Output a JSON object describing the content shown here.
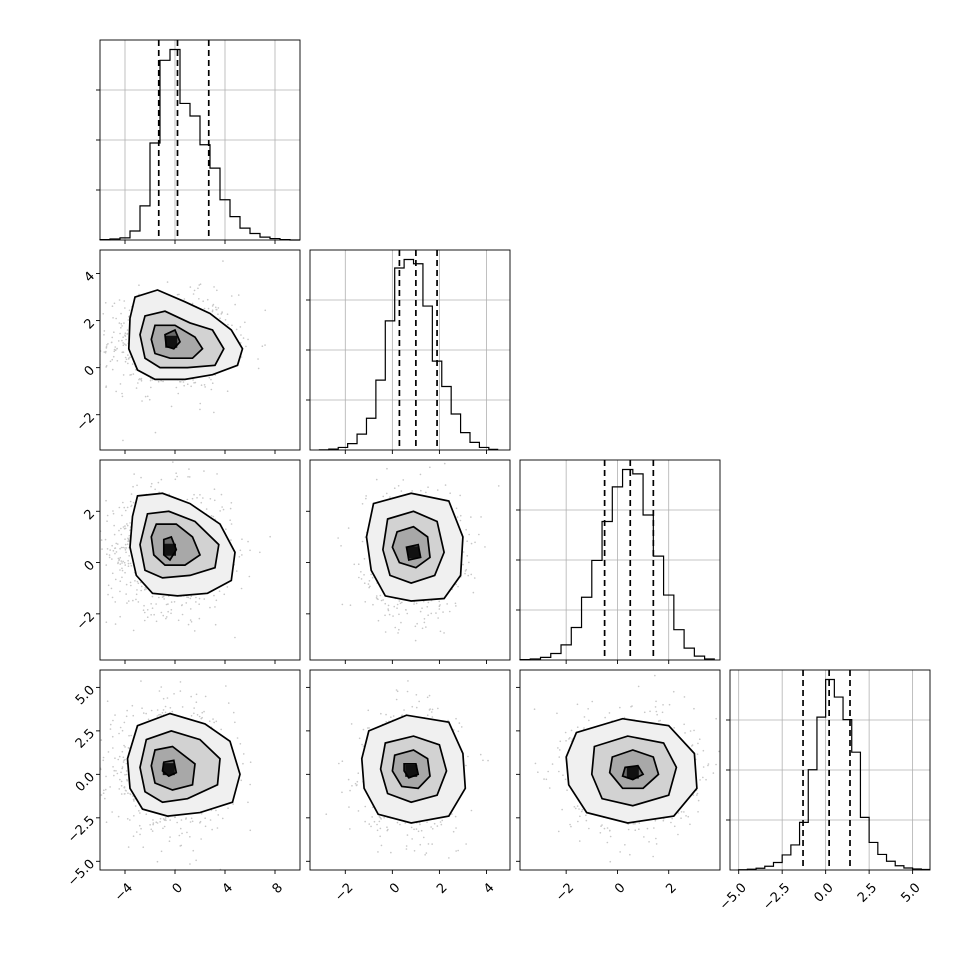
{
  "chart_data": {
    "type": "corner",
    "parameters": [
      {
        "index": 0,
        "range": [
          -6,
          10
        ],
        "quantiles": [
          -1.3,
          0.2,
          2.7
        ],
        "ticks": [
          -4,
          0,
          4,
          8
        ],
        "tick_labels": [
          "−4",
          "0",
          "4",
          "8"
        ],
        "hist": {
          "edges": [
            -6,
            -5.2,
            -4.4,
            -3.6,
            -2.8,
            -2,
            -1.2,
            -0.4,
            0.4,
            1.2,
            2,
            2.8,
            3.6,
            4.4,
            5.2,
            6,
            6.8,
            7.6,
            8.4,
            9.2,
            10
          ],
          "counts": [
            1,
            3,
            6,
            25,
            95,
            270,
            500,
            530,
            380,
            345,
            265,
            200,
            112,
            65,
            33,
            18,
            8,
            4,
            1,
            0
          ]
        }
      },
      {
        "index": 1,
        "range": [
          -3.5,
          5
        ],
        "quantiles": [
          0.3,
          1.0,
          1.9
        ],
        "ticks": [
          -2,
          0,
          2,
          4
        ],
        "tick_labels": [
          "−2",
          "0",
          "2",
          "4"
        ],
        "y_ticks": [
          -2,
          0,
          2,
          4
        ],
        "y_tick_labels": [
          "−2",
          "0",
          "2",
          "4"
        ],
        "hist": {
          "edges": [
            -3.1,
            -2.7,
            -2.3,
            -1.9,
            -1.5,
            -1.1,
            -0.7,
            -0.3,
            0.1,
            0.5,
            0.9,
            1.3,
            1.7,
            2.1,
            2.5,
            2.9,
            3.3,
            3.7,
            4.1,
            4.5
          ],
          "counts": [
            1,
            4,
            12,
            30,
            75,
            150,
            330,
            610,
            860,
            900,
            880,
            680,
            420,
            300,
            170,
            82,
            36,
            12,
            3
          ]
        }
      },
      {
        "index": 2,
        "range": [
          -3.8,
          4
        ],
        "quantiles": [
          -0.5,
          0.5,
          1.4
        ],
        "ticks": [
          -2,
          0,
          2
        ],
        "tick_labels": [
          "−2",
          "0",
          "2"
        ],
        "y_ticks": [
          -2,
          0,
          2
        ],
        "y_tick_labels": [
          "−2",
          "0",
          "2"
        ],
        "hist": {
          "edges": [
            -3.8,
            -3.4,
            -3,
            -2.6,
            -2.2,
            -1.8,
            -1.4,
            -1,
            -0.6,
            -0.2,
            0.2,
            0.6,
            1,
            1.4,
            1.8,
            2.2,
            2.6,
            3,
            3.4,
            3.8
          ],
          "counts": [
            2,
            5,
            12,
            30,
            70,
            150,
            290,
            460,
            640,
            800,
            880,
            860,
            670,
            480,
            300,
            140,
            55,
            18,
            5
          ]
        }
      },
      {
        "index": 3,
        "range": [
          -5.5,
          6
        ],
        "quantiles": [
          -1.3,
          0.2,
          1.4
        ],
        "ticks": [
          -5,
          -2.5,
          0,
          2.5,
          5
        ],
        "tick_labels": [
          "−5.0",
          "−2.5",
          "0.0",
          "2.5",
          "5.0"
        ],
        "y_ticks": [
          -5,
          -2.5,
          0,
          2.5,
          5
        ],
        "y_tick_labels": [
          "−5.0",
          "−2.5",
          "0.0",
          "2.5",
          "5.0"
        ],
        "hist": {
          "edges": [
            -5,
            -4.5,
            -4,
            -3.5,
            -3,
            -2.5,
            -2,
            -1.5,
            -1,
            -0.5,
            0,
            0.5,
            1,
            1.5,
            2,
            2.5,
            3,
            3.5,
            4,
            4.5,
            5,
            5.5,
            6
          ],
          "counts": [
            1,
            3,
            7,
            15,
            30,
            60,
            100,
            190,
            400,
            610,
            760,
            690,
            600,
            470,
            210,
            110,
            62,
            35,
            17,
            8,
            4,
            2
          ]
        }
      }
    ],
    "pairs": [
      {
        "x": 0,
        "y": 1,
        "peak": [
          -0.3,
          1.1
        ],
        "contours": [
          [
            [
              -3.2,
              3.0
            ],
            [
              -1.4,
              3.3
            ],
            [
              0.8,
              2.8
            ],
            [
              2.8,
              2.3
            ],
            [
              4.5,
              1.6
            ],
            [
              5.4,
              0.8
            ],
            [
              5.0,
              0.1
            ],
            [
              3.0,
              -0.3
            ],
            [
              0.8,
              -0.5
            ],
            [
              -1.6,
              -0.5
            ],
            [
              -3.0,
              -0.1
            ],
            [
              -3.7,
              0.8
            ],
            [
              -3.6,
              2.1
            ]
          ],
          [
            [
              -2.4,
              2.2
            ],
            [
              -0.8,
              2.4
            ],
            [
              1.2,
              1.9
            ],
            [
              3.0,
              1.6
            ],
            [
              3.9,
              0.8
            ],
            [
              3.2,
              0.1
            ],
            [
              1.0,
              0.0
            ],
            [
              -1.2,
              0.0
            ],
            [
              -2.4,
              0.4
            ],
            [
              -2.8,
              1.4
            ]
          ],
          [
            [
              -1.6,
              1.8
            ],
            [
              0.0,
              1.8
            ],
            [
              1.6,
              1.3
            ],
            [
              2.2,
              0.8
            ],
            [
              1.4,
              0.4
            ],
            [
              -0.4,
              0.4
            ],
            [
              -1.6,
              0.6
            ],
            [
              -1.9,
              1.2
            ]
          ],
          [
            [
              -0.8,
              1.4
            ],
            [
              0.0,
              1.6
            ],
            [
              0.4,
              1.1
            ],
            [
              -0.1,
              0.8
            ],
            [
              -0.7,
              0.9
            ]
          ]
        ]
      },
      {
        "x": 0,
        "y": 2,
        "peak": [
          -0.4,
          0.5
        ],
        "contours": [
          [
            [
              -3.0,
              2.6
            ],
            [
              -1.0,
              2.7
            ],
            [
              1.2,
              2.3
            ],
            [
              3.6,
              1.5
            ],
            [
              4.8,
              0.4
            ],
            [
              4.5,
              -0.7
            ],
            [
              2.6,
              -1.2
            ],
            [
              0.2,
              -1.3
            ],
            [
              -1.8,
              -1.2
            ],
            [
              -3.1,
              -0.5
            ],
            [
              -3.6,
              0.6
            ],
            [
              -3.4,
              1.8
            ]
          ],
          [
            [
              -2.2,
              1.9
            ],
            [
              -0.5,
              2.0
            ],
            [
              1.6,
              1.6
            ],
            [
              3.5,
              0.7
            ],
            [
              3.2,
              -0.2
            ],
            [
              1.2,
              -0.5
            ],
            [
              -1.0,
              -0.6
            ],
            [
              -2.4,
              -0.3
            ],
            [
              -2.8,
              0.7
            ]
          ],
          [
            [
              -1.5,
              1.5
            ],
            [
              0.1,
              1.5
            ],
            [
              1.4,
              1.0
            ],
            [
              2.0,
              0.3
            ],
            [
              0.8,
              -0.1
            ],
            [
              -0.8,
              -0.1
            ],
            [
              -1.7,
              0.3
            ],
            [
              -1.9,
              1.0
            ]
          ],
          [
            [
              -0.9,
              0.9
            ],
            [
              -0.3,
              1.0
            ],
            [
              0.1,
              0.5
            ],
            [
              -0.4,
              0.1
            ],
            [
              -0.9,
              0.3
            ]
          ]
        ]
      },
      {
        "x": 1,
        "y": 2,
        "peak": [
          0.9,
          0.4
        ],
        "contours": [
          [
            [
              -0.8,
              2.3
            ],
            [
              0.8,
              2.7
            ],
            [
              2.4,
              2.4
            ],
            [
              3.0,
              1.0
            ],
            [
              2.9,
              -0.5
            ],
            [
              2.2,
              -1.4
            ],
            [
              0.8,
              -1.5
            ],
            [
              -0.3,
              -1.3
            ],
            [
              -0.9,
              -0.3
            ],
            [
              -1.1,
              1.0
            ]
          ],
          [
            [
              -0.2,
              1.7
            ],
            [
              0.9,
              2.0
            ],
            [
              1.9,
              1.6
            ],
            [
              2.2,
              0.4
            ],
            [
              1.8,
              -0.5
            ],
            [
              0.8,
              -0.8
            ],
            [
              -0.1,
              -0.5
            ],
            [
              -0.4,
              0.5
            ]
          ],
          [
            [
              0.2,
              1.2
            ],
            [
              0.9,
              1.4
            ],
            [
              1.5,
              1.0
            ],
            [
              1.6,
              0.2
            ],
            [
              1.0,
              -0.2
            ],
            [
              0.3,
              0.0
            ],
            [
              0.0,
              0.6
            ]
          ],
          [
            [
              0.6,
              0.6
            ],
            [
              1.1,
              0.7
            ],
            [
              1.2,
              0.2
            ],
            [
              0.7,
              0.1
            ]
          ]
        ]
      },
      {
        "x": 0,
        "y": 3,
        "peak": [
          -0.5,
          0.3
        ],
        "contours": [
          [
            [
              -3.0,
              2.8
            ],
            [
              -0.4,
              3.5
            ],
            [
              2.4,
              2.9
            ],
            [
              4.4,
              1.9
            ],
            [
              5.2,
              0.0
            ],
            [
              4.6,
              -1.6
            ],
            [
              2.0,
              -2.2
            ],
            [
              -0.6,
              -2.4
            ],
            [
              -2.6,
              -2.0
            ],
            [
              -3.6,
              -0.8
            ],
            [
              -3.8,
              0.9
            ]
          ],
          [
            [
              -2.3,
              2.0
            ],
            [
              -0.3,
              2.5
            ],
            [
              2.0,
              2.0
            ],
            [
              3.6,
              0.9
            ],
            [
              3.4,
              -0.6
            ],
            [
              1.0,
              -1.4
            ],
            [
              -1.0,
              -1.6
            ],
            [
              -2.4,
              -1.0
            ],
            [
              -2.8,
              0.4
            ]
          ],
          [
            [
              -1.6,
              1.4
            ],
            [
              -0.2,
              1.6
            ],
            [
              1.6,
              0.6
            ],
            [
              1.4,
              -0.6
            ],
            [
              -0.2,
              -0.9
            ],
            [
              -1.6,
              -0.5
            ],
            [
              -1.9,
              0.5
            ]
          ],
          [
            [
              -0.9,
              0.7
            ],
            [
              -0.1,
              0.8
            ],
            [
              0.1,
              0.1
            ],
            [
              -0.5,
              -0.1
            ],
            [
              -1.0,
              0.2
            ]
          ]
        ]
      },
      {
        "x": 1,
        "y": 3,
        "peak": [
          0.8,
          0.2
        ],
        "contours": [
          [
            [
              -1.0,
              2.5
            ],
            [
              0.6,
              3.4
            ],
            [
              2.4,
              3.0
            ],
            [
              3.0,
              1.2
            ],
            [
              3.1,
              -0.8
            ],
            [
              2.4,
              -2.4
            ],
            [
              0.8,
              -2.8
            ],
            [
              -0.6,
              -2.3
            ],
            [
              -1.2,
              -0.8
            ],
            [
              -1.3,
              0.9
            ]
          ],
          [
            [
              -0.3,
              1.8
            ],
            [
              0.9,
              2.2
            ],
            [
              2.0,
              1.7
            ],
            [
              2.3,
              0.2
            ],
            [
              1.9,
              -1.2
            ],
            [
              0.8,
              -1.6
            ],
            [
              -0.2,
              -1.1
            ],
            [
              -0.5,
              0.3
            ]
          ],
          [
            [
              0.1,
              1.1
            ],
            [
              0.9,
              1.4
            ],
            [
              1.5,
              0.9
            ],
            [
              1.6,
              -0.1
            ],
            [
              1.1,
              -0.8
            ],
            [
              0.4,
              -0.7
            ],
            [
              0.0,
              0.2
            ]
          ],
          [
            [
              0.5,
              0.6
            ],
            [
              1.0,
              0.6
            ],
            [
              1.1,
              0.0
            ],
            [
              0.7,
              -0.2
            ],
            [
              0.5,
              0.2
            ]
          ]
        ]
      },
      {
        "x": 2,
        "y": 3,
        "peak": [
          0.6,
          0.1
        ],
        "contours": [
          [
            [
              -1.6,
              2.4
            ],
            [
              0.2,
              3.2
            ],
            [
              2.0,
              2.8
            ],
            [
              3.0,
              1.2
            ],
            [
              3.1,
              -0.8
            ],
            [
              2.2,
              -2.4
            ],
            [
              0.4,
              -2.8
            ],
            [
              -1.2,
              -2.2
            ],
            [
              -1.9,
              -0.6
            ],
            [
              -2.0,
              1.0
            ]
          ],
          [
            [
              -0.9,
              1.6
            ],
            [
              0.4,
              2.2
            ],
            [
              1.8,
              1.8
            ],
            [
              2.3,
              0.4
            ],
            [
              2.0,
              -1.2
            ],
            [
              0.6,
              -1.8
            ],
            [
              -0.6,
              -1.4
            ],
            [
              -1.0,
              0.0
            ]
          ],
          [
            [
              -0.2,
              1.0
            ],
            [
              0.6,
              1.4
            ],
            [
              1.4,
              1.0
            ],
            [
              1.6,
              0.0
            ],
            [
              1.0,
              -0.8
            ],
            [
              0.2,
              -0.8
            ],
            [
              -0.3,
              0.1
            ]
          ],
          [
            [
              0.3,
              0.4
            ],
            [
              0.8,
              0.5
            ],
            [
              1.0,
              0.0
            ],
            [
              0.6,
              -0.3
            ],
            [
              0.2,
              -0.1
            ]
          ]
        ]
      }
    ]
  }
}
